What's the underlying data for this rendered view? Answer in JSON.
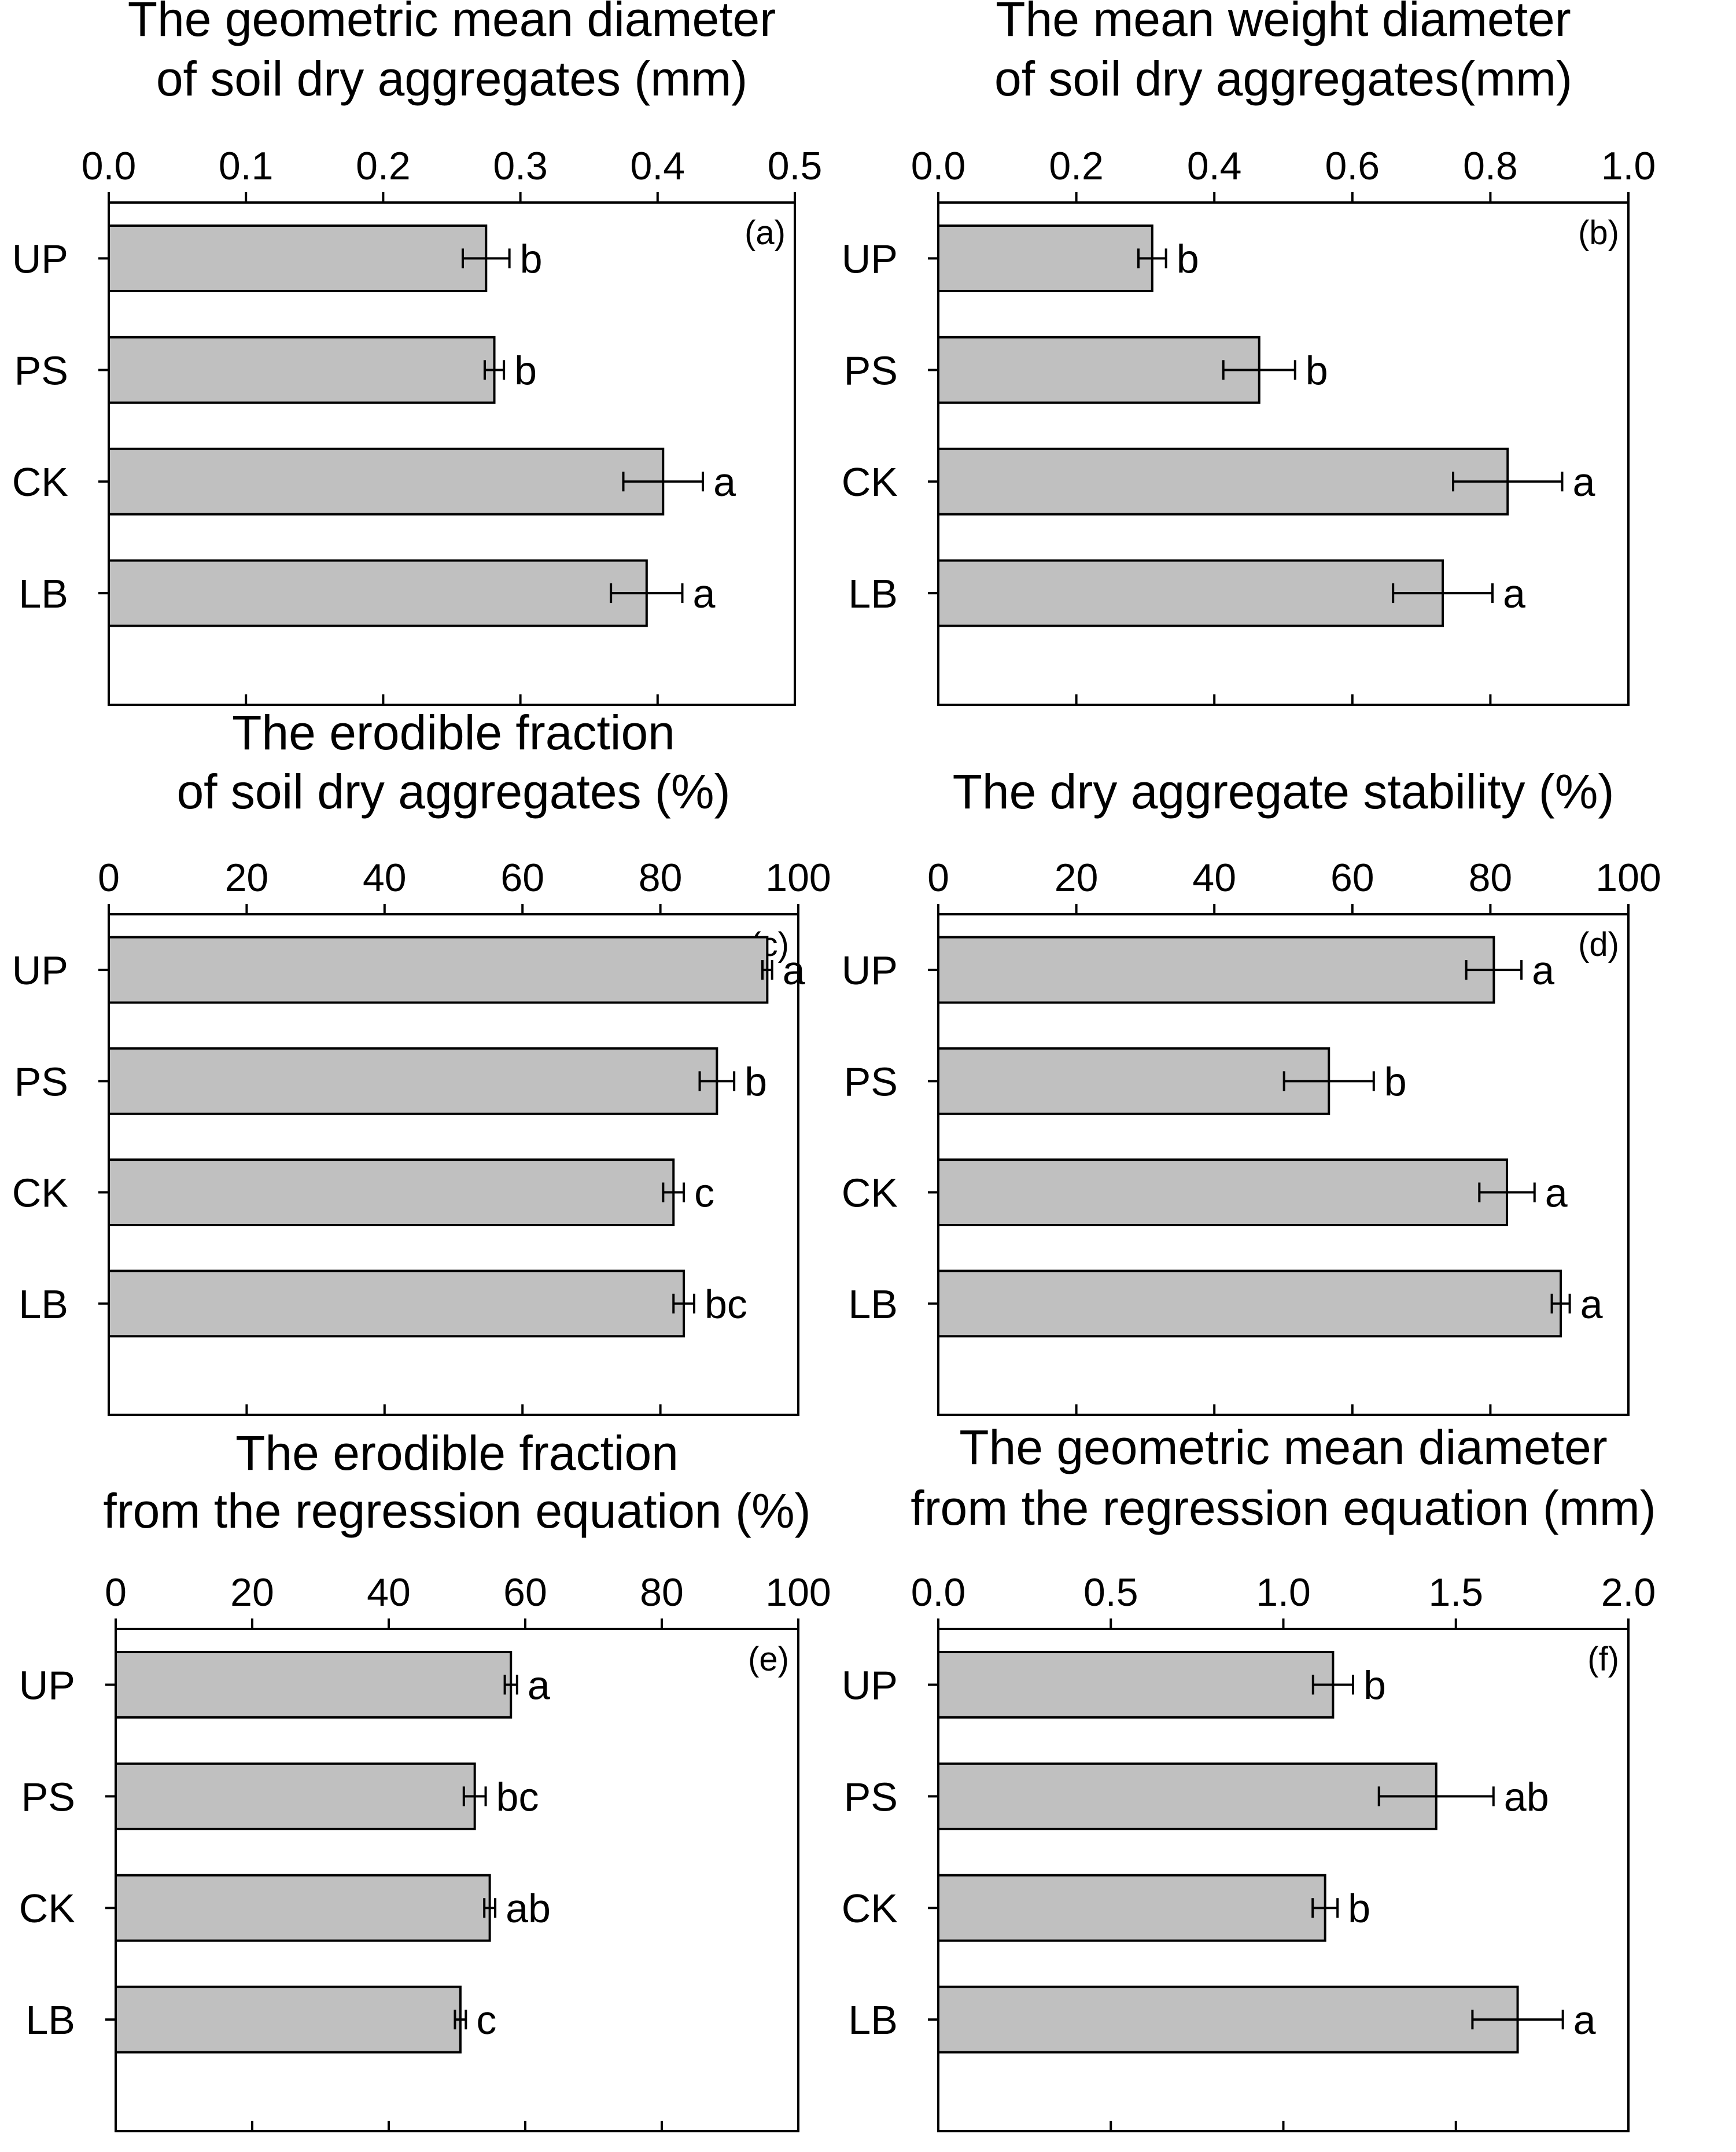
{
  "figure": {
    "panels_count": 6
  },
  "chart_data": [
    {
      "type": "bar",
      "orientation": "horizontal",
      "panel_label": "(a)",
      "title_lines": [
        "The geometric mean diameter",
        "of soil dry aggregates (mm)"
      ],
      "categories": [
        "UP",
        "PS",
        "CK",
        "LB"
      ],
      "values": [
        0.275,
        0.281,
        0.404,
        0.392
      ],
      "errors": [
        0.017,
        0.007,
        0.029,
        0.026
      ],
      "letters": [
        "b",
        "b",
        "a",
        "a"
      ],
      "xlim": [
        0,
        0.5
      ],
      "ticks": [
        "0.0",
        "0.1",
        "0.2",
        "0.3",
        "0.4",
        "0.5"
      ],
      "bar_color": "#c0c0c0"
    },
    {
      "type": "bar",
      "orientation": "horizontal",
      "panel_label": "(b)",
      "title_lines": [
        "The mean weight diameter",
        "of soil dry aggregates(mm)"
      ],
      "categories": [
        "UP",
        "PS",
        "CK",
        "LB"
      ],
      "values": [
        0.31,
        0.465,
        0.825,
        0.731
      ],
      "errors": [
        0.02,
        0.052,
        0.079,
        0.072
      ],
      "letters": [
        "b",
        "b",
        "a",
        "a"
      ],
      "xlim": [
        0,
        1.0
      ],
      "ticks": [
        "0.0",
        "0.2",
        "0.4",
        "0.6",
        "0.8",
        "1.0"
      ],
      "bar_color": "#c0c0c0"
    },
    {
      "type": "bar",
      "orientation": "horizontal",
      "panel_label": "(c)",
      "title_lines": [
        "The erodible fraction",
        "of soil dry aggregates (%)"
      ],
      "categories": [
        "UP",
        "PS",
        "CK",
        "LB"
      ],
      "values": [
        95.5,
        88.2,
        81.9,
        83.4
      ],
      "errors": [
        0.7,
        2.5,
        1.5,
        1.5
      ],
      "letters": [
        "a",
        "b",
        "c",
        "bc"
      ],
      "xlim": [
        0,
        100
      ],
      "ticks": [
        "0",
        "20",
        "40",
        "60",
        "80",
        "100"
      ],
      "bar_color": "#c0c0c0"
    },
    {
      "type": "bar",
      "orientation": "horizontal",
      "panel_label": "(d)",
      "title_lines": [
        "The dry aggregate stability (%)"
      ],
      "categories": [
        "UP",
        "PS",
        "CK",
        "LB"
      ],
      "values": [
        80.5,
        56.6,
        82.4,
        90.2
      ],
      "errors": [
        4.0,
        6.5,
        4.0,
        1.3
      ],
      "letters": [
        "a",
        "b",
        "a",
        "a"
      ],
      "xlim": [
        0,
        100
      ],
      "ticks": [
        "0",
        "20",
        "40",
        "60",
        "80",
        "100"
      ],
      "bar_color": "#c0c0c0"
    },
    {
      "type": "bar",
      "orientation": "horizontal",
      "panel_label": "(e)",
      "title_lines": [
        "The erodible fraction",
        "from the regression equation  (%)"
      ],
      "categories": [
        "UP",
        "PS",
        "CK",
        "LB"
      ],
      "values": [
        57.9,
        52.6,
        54.8,
        50.5
      ],
      "errors": [
        0.9,
        1.6,
        0.8,
        0.8
      ],
      "letters": [
        "a",
        "bc",
        "ab",
        "c"
      ],
      "xlim": [
        0,
        100
      ],
      "ticks": [
        "0",
        "20",
        "40",
        "60",
        "80",
        "100"
      ],
      "bar_color": "#c0c0c0"
    },
    {
      "type": "bar",
      "orientation": "horizontal",
      "panel_label": "(f)",
      "title_lines": [
        "The geometric mean diameter",
        "from the regression equation (mm)"
      ],
      "categories": [
        "UP",
        "PS",
        "CK",
        "LB"
      ],
      "values": [
        1.144,
        1.443,
        1.121,
        1.679
      ],
      "errors": [
        0.058,
        0.166,
        0.036,
        0.131
      ],
      "letters": [
        "b",
        "ab",
        "b",
        "a"
      ],
      "xlim": [
        0,
        2.0
      ],
      "ticks": [
        "0.0",
        "0.5",
        "1.0",
        "1.5",
        "2.0"
      ],
      "bar_color": "#c0c0c0"
    }
  ]
}
